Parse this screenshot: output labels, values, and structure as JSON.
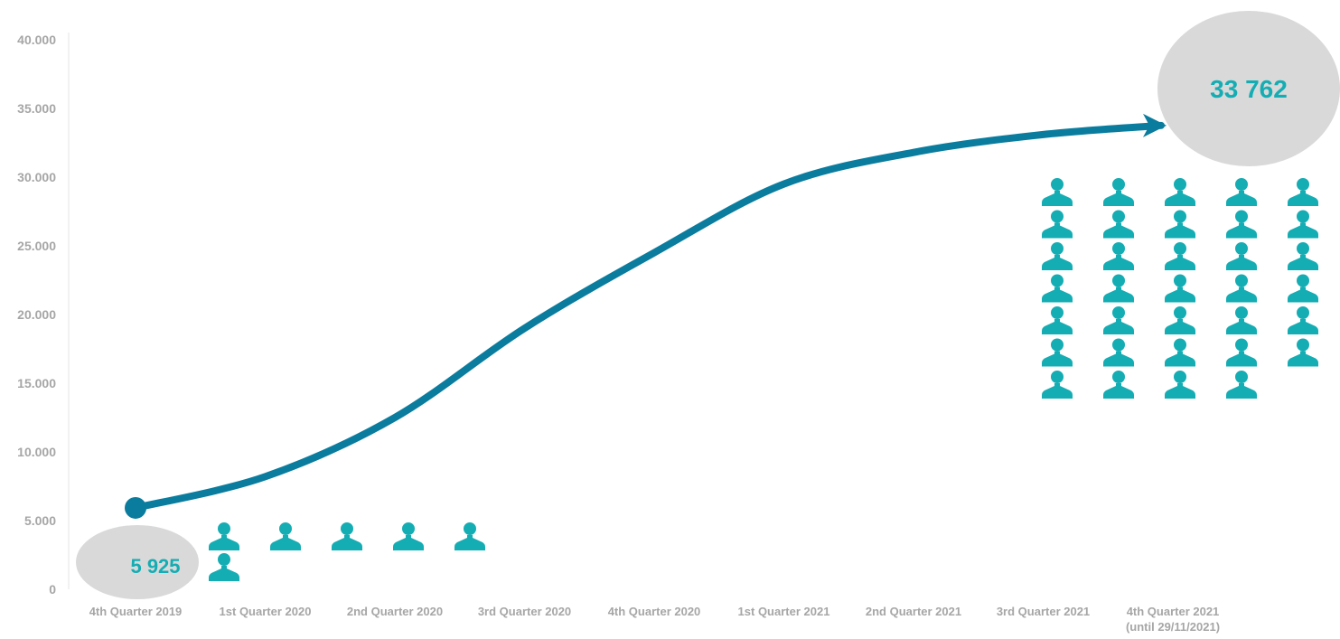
{
  "chart_data": {
    "type": "line",
    "categories": [
      "4th Quarter 2019",
      "1st Quarter 2020",
      "2nd Quarter 2020",
      "3rd Quarter 2020",
      "4th Quarter 2020",
      "1st Quarter 2021",
      "2nd Quarter 2021",
      "3rd Quarter 2021",
      "4th Quarter 2021\n(until 29/11/2021)"
    ],
    "values": [
      5925,
      8200,
      12500,
      19000,
      24500,
      29500,
      31800,
      33100,
      33762
    ],
    "ylim": [
      0,
      40000
    ],
    "yticks": [
      0,
      5000,
      10000,
      15000,
      20000,
      25000,
      30000,
      35000,
      40000
    ],
    "ytick_labels": [
      "0",
      "5.000",
      "10.000",
      "15.000",
      "20.000",
      "25.000",
      "30.000",
      "35.000",
      "40.000"
    ],
    "start_label": "5 925",
    "end_label": "33 762",
    "start_icon_count": 6,
    "end_icon_count": 34,
    "grid": false,
    "legend": "none"
  },
  "colors": {
    "line": "#0a7c9e",
    "icon": "#14adb3",
    "bubble": "#d9d9d9",
    "label": "#14adb3",
    "axis_text": "#a6a6a6",
    "axis_line": "#e6e6e6"
  },
  "icons": {
    "person": "person-icon"
  }
}
